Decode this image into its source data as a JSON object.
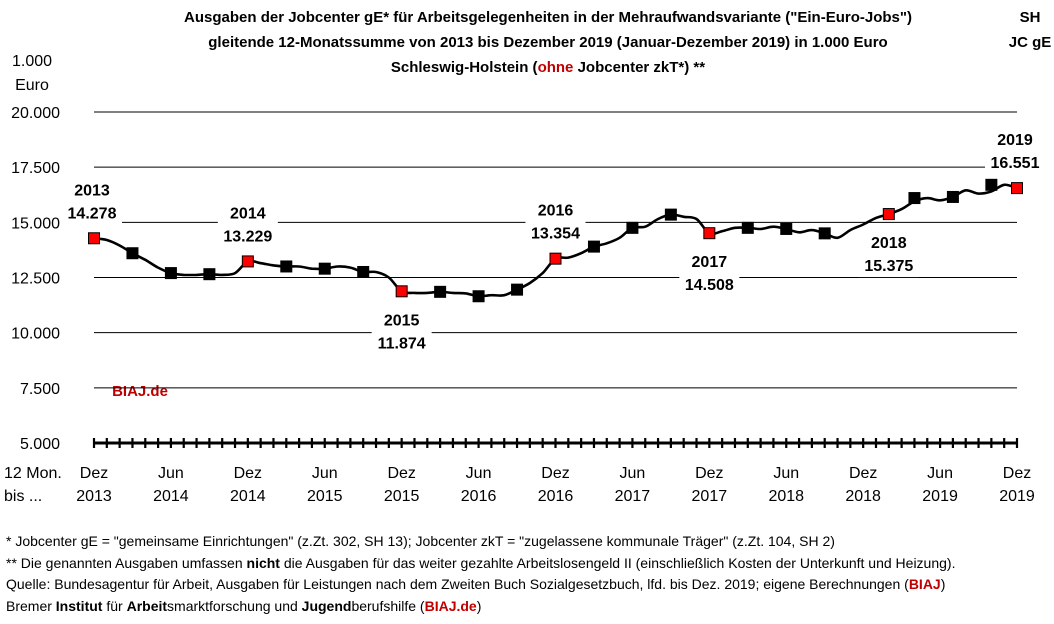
{
  "chart_data": {
    "type": "line",
    "title_lines": [
      "Ausgaben der Jobcenter gE* für Arbeitsgelegenheiten in der Mehraufwandsvariante (\"Ein-Euro-Jobs\")",
      "gleitende 12-Monatssumme von 2013 bis Dezember 2019 (Januar-Dezember 2019) in 1.000 Euro"
    ],
    "title_line3": {
      "before": "Schleswig-Holstein (",
      "red": "ohne",
      "after": " Jobcenter zkT*) **"
    },
    "corner_label": [
      "SH",
      "JC gE"
    ],
    "ylabel": [
      "1.000",
      "Euro"
    ],
    "xlabel": [
      "12 Mon.",
      "bis ..."
    ],
    "ylim": [
      5000,
      20000
    ],
    "yticks": [
      "5.000",
      "7.500",
      "10.000",
      "12.500",
      "15.000",
      "17.500",
      "20.000"
    ],
    "ytick_values": [
      5000,
      7500,
      10000,
      12500,
      15000,
      17500,
      20000
    ],
    "xtick_labels": [
      [
        "Dez",
        "2013"
      ],
      [
        "Jun",
        "2014"
      ],
      [
        "Dez",
        "2014"
      ],
      [
        "Jun",
        "2015"
      ],
      [
        "Dez",
        "2015"
      ],
      [
        "Jun",
        "2016"
      ],
      [
        "Dez",
        "2016"
      ],
      [
        "Jun",
        "2017"
      ],
      [
        "Dez",
        "2017"
      ],
      [
        "Jun",
        "2018"
      ],
      [
        "Dez",
        "2018"
      ],
      [
        "Jun",
        "2019"
      ],
      [
        "Dez",
        "2019"
      ]
    ],
    "xtick_months": [
      0,
      6,
      12,
      18,
      24,
      30,
      36,
      42,
      48,
      54,
      60,
      66,
      72
    ],
    "series": [
      {
        "months": [
          0,
          1,
          2,
          3,
          4,
          5,
          6,
          7,
          8,
          9,
          10,
          11,
          12,
          13,
          14,
          15,
          16,
          17,
          18,
          19,
          20,
          21,
          22,
          23,
          24,
          25,
          26,
          27,
          28,
          29,
          30,
          31,
          32,
          33,
          34,
          35,
          36,
          37,
          38,
          39,
          40,
          41,
          42,
          43,
          44,
          45,
          46,
          47,
          48,
          49,
          50,
          51,
          52,
          53,
          54,
          55,
          56,
          57,
          58,
          59,
          60,
          61,
          62,
          63,
          64,
          65,
          66,
          67,
          68,
          69,
          70,
          71,
          72
        ],
        "values": [
          14278,
          14200,
          13950,
          13600,
          13300,
          12950,
          12700,
          12620,
          12620,
          12650,
          12620,
          12700,
          13229,
          13150,
          13050,
          13000,
          13000,
          12900,
          12900,
          13000,
          12950,
          12750,
          12750,
          12500,
          11874,
          11800,
          11800,
          11850,
          11800,
          11780,
          11650,
          11700,
          11700,
          11950,
          12250,
          12700,
          13354,
          13400,
          13600,
          13900,
          14050,
          14300,
          14750,
          14800,
          15150,
          15350,
          15250,
          15150,
          14508,
          14600,
          14750,
          14750,
          14700,
          14800,
          14700,
          14550,
          14650,
          14500,
          14300,
          14650,
          14900,
          15200,
          15375,
          15600,
          15950,
          16100,
          16000,
          16150,
          16450,
          16300,
          16400,
          16700,
          16551
        ]
      }
    ],
    "markers": [
      {
        "month": 0,
        "value": 14278,
        "color": "red"
      },
      {
        "month": 3,
        "value": 13600,
        "color": "black"
      },
      {
        "month": 6,
        "value": 12700,
        "color": "black"
      },
      {
        "month": 9,
        "value": 12650,
        "color": "black"
      },
      {
        "month": 12,
        "value": 13229,
        "color": "red"
      },
      {
        "month": 15,
        "value": 13000,
        "color": "black"
      },
      {
        "month": 18,
        "value": 12900,
        "color": "black"
      },
      {
        "month": 21,
        "value": 12750,
        "color": "black"
      },
      {
        "month": 24,
        "value": 11874,
        "color": "red"
      },
      {
        "month": 27,
        "value": 11850,
        "color": "black"
      },
      {
        "month": 30,
        "value": 11650,
        "color": "black"
      },
      {
        "month": 33,
        "value": 11950,
        "color": "black"
      },
      {
        "month": 36,
        "value": 13354,
        "color": "red"
      },
      {
        "month": 39,
        "value": 13900,
        "color": "black"
      },
      {
        "month": 42,
        "value": 14750,
        "color": "black"
      },
      {
        "month": 45,
        "value": 15350,
        "color": "black"
      },
      {
        "month": 48,
        "value": 14508,
        "color": "red"
      },
      {
        "month": 51,
        "value": 14750,
        "color": "black"
      },
      {
        "month": 54,
        "value": 14700,
        "color": "black"
      },
      {
        "month": 57,
        "value": 14500,
        "color": "black"
      },
      {
        "month": 62,
        "value": 15375,
        "color": "red"
      },
      {
        "month": 64,
        "value": 16100,
        "color": "black"
      },
      {
        "month": 67,
        "value": 16150,
        "color": "black"
      },
      {
        "month": 70,
        "value": 16700,
        "color": "black"
      },
      {
        "month": 72,
        "value": 16551,
        "color": "red"
      }
    ],
    "annotations": [
      {
        "year": "2013",
        "value": "14.278",
        "month": 0,
        "pos": "above"
      },
      {
        "year": "2014",
        "value": "13.229",
        "month": 12,
        "pos": "above"
      },
      {
        "year": "2015",
        "value": "11.874",
        "month": 24,
        "pos": "below"
      },
      {
        "year": "2016",
        "value": "13.354",
        "month": 36,
        "pos": "above"
      },
      {
        "year": "2017",
        "value": "14.508",
        "month": 48,
        "pos": "below"
      },
      {
        "year": "2018",
        "value": "15.375",
        "month": 62,
        "pos": "below"
      },
      {
        "year": "2019",
        "value": "16.551",
        "month": 72,
        "pos": "above"
      }
    ],
    "watermark": "BIAJ.de",
    "grid": true,
    "colors": {
      "line": "#000000",
      "highlight": "#ff0000",
      "accent_text": "#c00000"
    }
  },
  "footnotes": {
    "line1": "*    Jobcenter gE = \"gemeinsame Einrichtungen\" (z.Zt. 302, SH 13); Jobcenter zkT = \"zugelassene kommunale Träger\" (z.Zt. 104, SH 2)",
    "line2_before": "** Die genannten Ausgaben umfassen ",
    "line2_bold": "nicht",
    "line2_after": " die Ausgaben für das weiter gezahlte Arbeitslosengeld II (einschließlich Kosten der Unterkunft und Heizung).",
    "line3_before": "Quelle: Bundesagentur für Arbeit, Ausgaben für Leistungen nach dem Zweiten Buch Sozialgesetzbuch, lfd. bis Dez. 2019; eigene Berechnungen (",
    "line3_red": "BIAJ",
    "line3_after": ")",
    "line4_a": "Bremer ",
    "line4_b": "Institut",
    "line4_c": " für ",
    "line4_d": "Arbeit",
    "line4_e": "smarktforschung und ",
    "line4_f": "Jugend",
    "line4_g": "berufshilfe (",
    "line4_h": "BIAJ.de",
    "line4_i": ")"
  }
}
